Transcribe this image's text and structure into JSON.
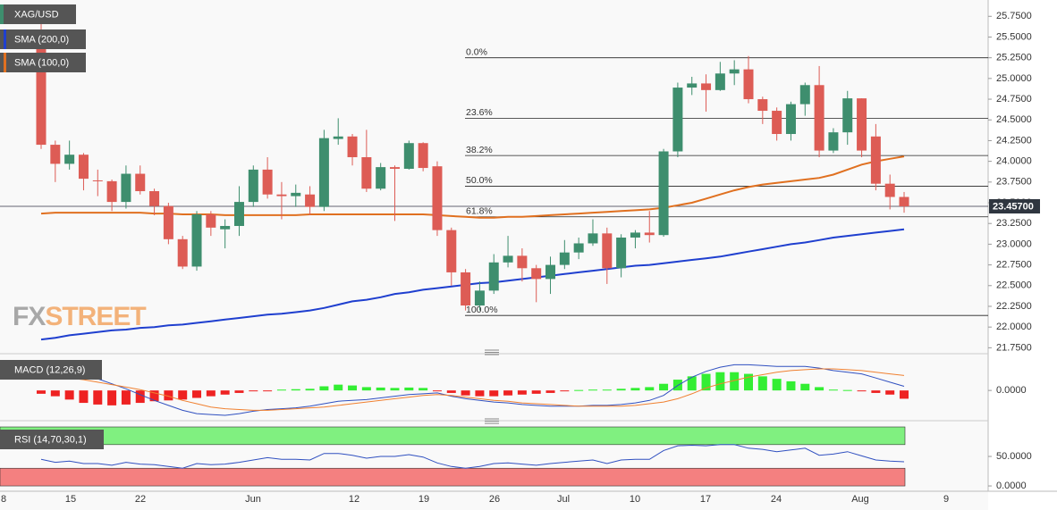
{
  "chart_data": [
    {
      "type": "candlestick",
      "title": "XAG/USD",
      "series": [
        {
          "name": "XAG/USD",
          "up_color": "#3e8e6e",
          "down_color": "#dd5c55",
          "open": [
            25.57,
            24.2,
            23.97,
            24.08,
            23.77,
            23.76,
            23.51,
            23.85,
            23.64,
            23.46,
            23.06,
            22.73,
            23.36,
            23.18,
            23.22,
            23.51,
            23.9,
            23.6,
            23.58,
            23.6,
            23.45,
            24.27,
            24.3,
            24.05,
            23.67,
            23.93,
            23.91,
            24.22,
            23.94,
            23.17,
            22.66,
            22.26,
            22.44,
            22.78,
            22.86,
            22.71,
            22.58,
            22.75,
            22.9,
            23.01,
            23.13,
            22.71,
            23.08,
            23.14,
            23.11,
            24.12,
            24.89,
            24.94,
            24.86,
            25.06,
            25.11,
            24.75,
            24.61,
            24.33,
            24.69,
            24.92,
            24.13,
            24.35,
            24.76,
            24.3,
            23.73,
            23.57
          ],
          "high": [
            25.85,
            24.25,
            24.25,
            24.1,
            23.9,
            23.78,
            23.95,
            23.95,
            23.67,
            23.5,
            23.1,
            23.4,
            23.4,
            23.3,
            23.7,
            23.95,
            24.05,
            23.75,
            23.72,
            23.7,
            24.38,
            24.52,
            24.33,
            24.38,
            23.98,
            23.95,
            24.25,
            24.23,
            24.0,
            23.2,
            22.7,
            22.55,
            22.88,
            23.1,
            22.95,
            22.75,
            22.85,
            23.05,
            23.08,
            23.3,
            23.2,
            23.12,
            23.17,
            23.4,
            24.15,
            24.95,
            25.02,
            25.05,
            25.2,
            25.22,
            25.27,
            24.78,
            24.65,
            24.72,
            24.95,
            25.15,
            24.4,
            24.85,
            24.76,
            24.45,
            23.84,
            23.63
          ],
          "low": [
            24.15,
            23.75,
            23.9,
            23.65,
            23.58,
            23.4,
            23.43,
            23.6,
            23.35,
            23.0,
            22.7,
            22.68,
            23.1,
            22.95,
            23.1,
            23.45,
            23.55,
            23.3,
            23.45,
            23.35,
            23.4,
            24.2,
            23.95,
            23.63,
            23.65,
            23.28,
            23.9,
            23.88,
            23.1,
            22.5,
            22.2,
            22.2,
            22.4,
            22.72,
            22.55,
            22.3,
            22.4,
            22.7,
            22.82,
            22.98,
            22.52,
            22.6,
            22.95,
            23.02,
            23.09,
            24.05,
            24.8,
            24.6,
            24.85,
            24.92,
            24.7,
            24.45,
            24.25,
            24.25,
            24.55,
            24.05,
            24.1,
            24.2,
            24.05,
            23.65,
            23.42,
            23.38
          ],
          "close": [
            24.2,
            23.97,
            24.08,
            23.79,
            23.76,
            23.51,
            23.85,
            23.64,
            23.46,
            23.06,
            22.73,
            23.36,
            23.2,
            23.22,
            23.51,
            23.9,
            23.6,
            23.58,
            23.62,
            23.45,
            24.28,
            24.3,
            24.05,
            23.67,
            23.93,
            23.91,
            24.22,
            23.92,
            23.17,
            22.66,
            22.26,
            22.44,
            22.78,
            22.86,
            22.71,
            22.58,
            22.75,
            22.9,
            23.01,
            23.13,
            22.71,
            23.08,
            23.14,
            23.11,
            24.12,
            24.89,
            24.94,
            24.86,
            25.06,
            25.11,
            24.75,
            24.61,
            24.33,
            24.69,
            24.92,
            24.13,
            24.35,
            24.76,
            24.13,
            23.73,
            23.57,
            23.457
          ]
        }
      ],
      "overlays": [
        {
          "name": "SMA (200,0)",
          "color": "#1f3fcf",
          "values": [
            21.85,
            21.87,
            21.9,
            21.92,
            21.94,
            21.96,
            21.97,
            21.99,
            22.0,
            22.02,
            22.03,
            22.05,
            22.07,
            22.09,
            22.11,
            22.13,
            22.15,
            22.16,
            22.18,
            22.2,
            22.23,
            22.27,
            22.31,
            22.33,
            22.36,
            22.4,
            22.42,
            22.45,
            22.47,
            22.49,
            22.51,
            22.53,
            22.54,
            22.56,
            22.58,
            22.6,
            22.62,
            22.64,
            22.66,
            22.68,
            22.7,
            22.72,
            22.74,
            22.75,
            22.77,
            22.79,
            22.81,
            22.83,
            22.85,
            22.88,
            22.91,
            22.94,
            22.97,
            23.0,
            23.02,
            23.05,
            23.08,
            23.1,
            23.12,
            23.14,
            23.16,
            23.18
          ]
        },
        {
          "name": "SMA (100,0)",
          "color": "#e07020",
          "values": [
            23.37,
            23.38,
            23.38,
            23.38,
            23.38,
            23.38,
            23.38,
            23.38,
            23.37,
            23.37,
            23.36,
            23.36,
            23.36,
            23.35,
            23.35,
            23.35,
            23.35,
            23.35,
            23.35,
            23.36,
            23.36,
            23.36,
            23.36,
            23.36,
            23.36,
            23.36,
            23.36,
            23.36,
            23.35,
            23.34,
            23.33,
            23.32,
            23.32,
            23.33,
            23.33,
            23.34,
            23.35,
            23.36,
            23.37,
            23.38,
            23.39,
            23.4,
            23.41,
            23.42,
            23.44,
            23.47,
            23.5,
            23.55,
            23.6,
            23.65,
            23.69,
            23.72,
            23.74,
            23.76,
            23.78,
            23.8,
            23.84,
            23.9,
            23.96,
            24.0,
            24.03,
            24.06
          ]
        }
      ],
      "fib_levels": [
        {
          "label": "0.0%",
          "value": 25.25
        },
        {
          "label": "23.6%",
          "value": 24.52
        },
        {
          "label": "38.2%",
          "value": 24.07
        },
        {
          "label": "50.0%",
          "value": 23.7
        },
        {
          "label": "61.8%",
          "value": 23.33
        },
        {
          "label": "100.0%",
          "value": 22.14
        }
      ],
      "last_price": {
        "value": 23.457,
        "label": "23.45700"
      },
      "ylim": [
        21.7,
        25.85
      ],
      "yticks": [
        {
          "value": 25.75,
          "label": "25.7500"
        },
        {
          "value": 25.5,
          "label": "25.5000"
        },
        {
          "value": 25.25,
          "label": "25.2500"
        },
        {
          "value": 25.0,
          "label": "25.0000"
        },
        {
          "value": 24.75,
          "label": "24.7500"
        },
        {
          "value": 24.5,
          "label": "24.5000"
        },
        {
          "value": 24.25,
          "label": "24.2500"
        },
        {
          "value": 24.0,
          "label": "24.0000"
        },
        {
          "value": 23.75,
          "label": "23.7500"
        },
        {
          "value": 23.5,
          "label": "23.5000"
        },
        {
          "value": 23.25,
          "label": "23.2500"
        },
        {
          "value": 23.0,
          "label": "23.0000"
        },
        {
          "value": 22.75,
          "label": "22.7500"
        },
        {
          "value": 22.5,
          "label": "22.5000"
        },
        {
          "value": 22.25,
          "label": "22.2500"
        },
        {
          "value": 22.0,
          "label": "22.0000"
        },
        {
          "value": 21.75,
          "label": "21.7500"
        }
      ],
      "xtick_labels": [
        "8",
        "15",
        "22",
        "Jun",
        "12",
        "19",
        "26",
        "Jul",
        "10",
        "17",
        "24",
        "Aug",
        "9"
      ],
      "watermark": [
        "FX",
        "STREET"
      ]
    },
    {
      "type": "macd",
      "title": "MACD (12,26,9)",
      "histogram": {
        "up_color": "#33ee33",
        "down_color": "#ee2222",
        "values": [
          -0.04,
          -0.07,
          -0.11,
          -0.15,
          -0.17,
          -0.18,
          -0.17,
          -0.15,
          -0.13,
          -0.12,
          -0.11,
          -0.09,
          -0.07,
          -0.05,
          -0.03,
          -0.01,
          -0.005,
          0.01,
          0.015,
          0.02,
          0.05,
          0.07,
          0.06,
          0.04,
          0.035,
          0.03,
          0.035,
          0.03,
          -0.005,
          -0.03,
          -0.06,
          -0.07,
          -0.07,
          -0.06,
          -0.05,
          -0.04,
          -0.03,
          -0.01,
          0.005,
          0.01,
          0.01,
          0.02,
          0.03,
          0.04,
          0.08,
          0.13,
          0.17,
          0.2,
          0.22,
          0.22,
          0.2,
          0.17,
          0.14,
          0.11,
          0.08,
          0.04,
          0.01,
          0.005,
          -0.01,
          -0.03,
          -0.05,
          -0.1
        ]
      },
      "series": [
        {
          "color": "#3050c0",
          "values": [
            0.29,
            0.26,
            0.23,
            0.19,
            0.14,
            0.08,
            0.02,
            -0.05,
            -0.12,
            -0.18,
            -0.24,
            -0.28,
            -0.29,
            -0.3,
            -0.28,
            -0.25,
            -0.23,
            -0.22,
            -0.21,
            -0.19,
            -0.16,
            -0.13,
            -0.12,
            -0.11,
            -0.09,
            -0.07,
            -0.05,
            -0.04,
            -0.03,
            -0.07,
            -0.1,
            -0.12,
            -0.14,
            -0.15,
            -0.17,
            -0.18,
            -0.19,
            -0.19,
            -0.19,
            -0.18,
            -0.18,
            -0.17,
            -0.15,
            -0.12,
            -0.06,
            0.06,
            0.16,
            0.23,
            0.28,
            0.31,
            0.31,
            0.3,
            0.29,
            0.29,
            0.29,
            0.27,
            0.24,
            0.22,
            0.2,
            0.15,
            0.1,
            0.05
          ]
        },
        {
          "color": "#f08030",
          "values": [
            0.18,
            0.17,
            0.15,
            0.13,
            0.1,
            0.07,
            0.04,
            0.01,
            -0.03,
            -0.07,
            -0.12,
            -0.16,
            -0.2,
            -0.22,
            -0.23,
            -0.24,
            -0.24,
            -0.23,
            -0.22,
            -0.21,
            -0.2,
            -0.18,
            -0.16,
            -0.14,
            -0.12,
            -0.1,
            -0.08,
            -0.06,
            -0.05,
            -0.06,
            -0.08,
            -0.1,
            -0.12,
            -0.13,
            -0.15,
            -0.16,
            -0.17,
            -0.18,
            -0.19,
            -0.19,
            -0.19,
            -0.19,
            -0.18,
            -0.16,
            -0.14,
            -0.1,
            -0.04,
            0.03,
            0.08,
            0.12,
            0.16,
            0.19,
            0.22,
            0.24,
            0.25,
            0.26,
            0.26,
            0.25,
            0.24,
            0.22,
            0.2,
            0.18
          ]
        }
      ],
      "ylim": [
        -0.3,
        0.4
      ],
      "yticks": [
        {
          "value": 0,
          "label": "0.0000"
        }
      ]
    },
    {
      "type": "line",
      "title": "RSI (14,70,30,1)",
      "bands": [
        {
          "from": 70,
          "to": 100,
          "color": "#80f080"
        },
        {
          "from": 0,
          "to": 30,
          "color": "#f48080"
        }
      ],
      "series": [
        {
          "color": "#3050c0",
          "values": [
            45,
            40,
            42,
            38,
            38,
            35,
            40,
            37,
            36,
            33,
            30,
            38,
            36,
            37,
            40,
            44,
            48,
            45,
            45,
            44,
            55,
            55,
            52,
            47,
            50,
            50,
            53,
            49,
            39,
            33,
            30,
            33,
            38,
            39,
            37,
            35,
            38,
            40,
            42,
            44,
            38,
            44,
            45,
            45,
            60,
            68,
            69,
            68,
            70,
            70,
            64,
            62,
            58,
            61,
            64,
            52,
            54,
            58,
            51,
            44,
            42,
            41
          ]
        }
      ],
      "ylim": [
        -9,
        105
      ],
      "yticks": [
        {
          "value": 50,
          "label": "50.0000"
        },
        {
          "value": 0,
          "label": "0.0000"
        }
      ]
    }
  ]
}
